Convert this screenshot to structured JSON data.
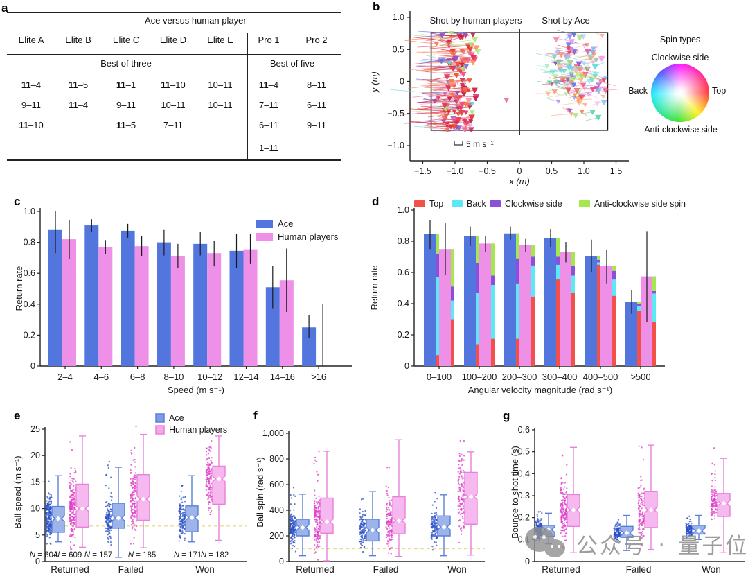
{
  "panels": {
    "a": {
      "letter": "a",
      "title": "Ace versus human player",
      "columns": [
        "Elite A",
        "Elite B",
        "Elite C",
        "Elite D",
        "Elite E",
        "Pro 1",
        "Pro 2"
      ],
      "group_headers": [
        {
          "text": "Best of three",
          "cols": [
            0,
            4
          ]
        },
        {
          "text": "Best of five",
          "cols": [
            5,
            6
          ]
        }
      ],
      "rows": [
        [
          {
            "s": "11–4",
            "w": true
          },
          {
            "s": "11–5",
            "w": true
          },
          {
            "s": "11–1",
            "w": true
          },
          {
            "s": "11–10",
            "w": true
          },
          {
            "s": "10–11",
            "w": false
          },
          {
            "s": "11–4",
            "w": true
          },
          {
            "s": "8–11",
            "w": false
          }
        ],
        [
          {
            "s": "9–11",
            "w": false
          },
          {
            "s": "11–4",
            "w": true
          },
          {
            "s": "9–11",
            "w": false
          },
          {
            "s": "10–11",
            "w": false
          },
          {
            "s": "10–11",
            "w": false
          },
          {
            "s": "7–11",
            "w": false
          },
          {
            "s": "6–11",
            "w": false
          }
        ],
        [
          {
            "s": "11–10",
            "w": true
          },
          {
            "s": "",
            "w": false
          },
          {
            "s": "11–5",
            "w": true
          },
          {
            "s": "7–11",
            "w": false
          },
          {
            "s": "",
            "w": false
          },
          {
            "s": "6–11",
            "w": false
          },
          {
            "s": "9–11",
            "w": false
          }
        ],
        [
          {
            "s": "",
            "w": false
          },
          {
            "s": "",
            "w": false
          },
          {
            "s": "",
            "w": false
          },
          {
            "s": "",
            "w": false
          },
          {
            "s": "",
            "w": false
          },
          {
            "s": "1–11",
            "w": false
          },
          {
            "s": "",
            "w": false
          }
        ]
      ]
    },
    "b": {
      "letter": "b"
    },
    "c": {
      "letter": "c"
    },
    "d": {
      "letter": "d"
    },
    "e": {
      "letter": "e"
    },
    "f": {
      "letter": "f"
    },
    "g": {
      "letter": "g"
    }
  },
  "colors": {
    "ace_blue": "#5276dd",
    "human_pink": "#ee8fe8",
    "box_ace_fill": "#9db4ea",
    "box_ace_stroke": "#5b7fd9",
    "box_human_fill": "#f5b8ef",
    "box_human_stroke": "#e981da",
    "jitter_ace": "#2a50c8",
    "jitter_human": "#e03cc8",
    "spin_top": "#f25048",
    "spin_back": "#5ce8f5",
    "spin_cw": "#8a50dc",
    "spin_acw": "#a4e74e",
    "refline": "#e6dd8f",
    "err": "#1a1a1a"
  },
  "chart_data": [
    {
      "id": "b",
      "type": "scatter",
      "title_left": "Shot by human players",
      "title_right": "Shot by Ace",
      "xlabel": "x (m)",
      "ylabel": "y (m)",
      "xlim": [
        -1.5,
        1.5
      ],
      "ylim": [
        -1.0,
        1.0
      ],
      "xticks": [
        {
          "l": "−1.5",
          "v": -1.5
        },
        {
          "l": "−1.0",
          "v": -1.0
        },
        {
          "l": "−0.5",
          "v": -0.5
        },
        {
          "l": "0",
          "v": 0
        },
        {
          "l": "0.5",
          "v": 0.5
        },
        {
          "l": "1.0",
          "v": 1.0
        },
        {
          "l": "1.5",
          "v": 1.5
        }
      ],
      "yticks": [
        {
          "l": "1.0",
          "v": 1.0
        },
        {
          "l": "0.5",
          "v": 0.5
        },
        {
          "l": "0",
          "v": 0
        },
        {
          "l": "−0.5",
          "v": -0.5
        },
        {
          "l": "−1.0",
          "v": -1.0
        }
      ],
      "table_rect": {
        "x": [
          -1.37,
          1.37
        ],
        "y": [
          -0.76,
          0.76
        ]
      },
      "scale_label": "5 m s⁻¹",
      "wheel": {
        "title": "Spin types",
        "top": "Clockwise side",
        "left": "Back",
        "right": "Top",
        "bottom": "Anti-clockwise side"
      },
      "clusters": [
        {
          "name": "human-shots",
          "n": 150,
          "x": [
            -1.33,
            -0.58
          ],
          "y": [
            -0.77,
            0.76
          ],
          "tail": "long-left",
          "palette": [
            "#e0302f",
            "#e8403d",
            "#f05545",
            "#d92638",
            "#f26a4a",
            "#ff7847",
            "#e8356e",
            "#f2497f",
            "#d4265e",
            "#ff8a5e",
            "#f06a9a",
            "#c22047",
            "#ef4444",
            "#e95c2e",
            "#8a4fd8",
            "#6fd8e0",
            "#a8e87a",
            "#f2a4c4",
            "#5f72e8"
          ]
        },
        {
          "name": "ace-shots",
          "n": 140,
          "x": [
            0.36,
            1.35
          ],
          "y": [
            -0.66,
            0.73
          ],
          "tail": "short",
          "palette": [
            "#ef4d6e",
            "#f2689a",
            "#e84545",
            "#ff8a5c",
            "#f2a05a",
            "#ee8fe8",
            "#d455c8",
            "#8a4fd8",
            "#6a74e8",
            "#7fb4f0",
            "#63dbe0",
            "#66d9a8",
            "#9fe566",
            "#c8e87a",
            "#f2b4d4",
            "#ffb08a",
            "#e84587",
            "#74e0cf"
          ]
        }
      ],
      "strays": [
        {
          "x": -0.2,
          "y": -0.29,
          "color": "#f06a9a"
        }
      ]
    },
    {
      "id": "c",
      "type": "bar",
      "ylabel": "Return rate",
      "xlabel": "Speed (m s⁻¹)",
      "ylim": [
        0,
        1.0
      ],
      "yticks": [
        {
          "l": "0",
          "v": 0
        },
        {
          "l": "0.2",
          "v": 0.2
        },
        {
          "l": "0.4",
          "v": 0.4
        },
        {
          "l": "0.6",
          "v": 0.6
        },
        {
          "l": "0.8",
          "v": 0.8
        },
        {
          "l": "1.0",
          "v": 1.0
        }
      ],
      "categories": [
        "2–4",
        "4–6",
        "6–8",
        "8–10",
        "10–12",
        "12–14",
        "14–16",
        ">16"
      ],
      "series": [
        {
          "name": "Ace",
          "values": [
            0.88,
            0.91,
            0.875,
            0.8,
            0.79,
            0.745,
            0.51,
            0.25
          ],
          "err": [
            [
              0.73,
              1.0
            ],
            [
              0.87,
              0.95
            ],
            [
              0.83,
              0.92
            ],
            [
              0.715,
              0.88
            ],
            [
              0.715,
              0.87
            ],
            [
              0.635,
              0.855
            ],
            [
              0.37,
              0.65
            ],
            [
              0.18,
              0.33
            ]
          ]
        },
        {
          "name": "Human players",
          "values": [
            0.82,
            0.77,
            0.775,
            0.71,
            0.73,
            0.755,
            0.555,
            0
          ],
          "err": [
            [
              0.69,
              0.945
            ],
            [
              0.725,
              0.815
            ],
            [
              0.71,
              0.84
            ],
            [
              0.635,
              0.79
            ],
            [
              0.645,
              0.81
            ],
            [
              0.66,
              0.855
            ],
            [
              0.35,
              0.76
            ],
            [
              0.0,
              0.4
            ]
          ]
        }
      ]
    },
    {
      "id": "d",
      "type": "bar-stacked-overlay",
      "ylabel": "Return rate",
      "xlabel": "Angular velocity magnitude (rad s⁻¹)",
      "ylim": [
        0,
        1.0
      ],
      "yticks": [
        {
          "l": "0",
          "v": 0
        },
        {
          "l": "0.2",
          "v": 0.2
        },
        {
          "l": "0.4",
          "v": 0.4
        },
        {
          "l": "0.6",
          "v": 0.6
        },
        {
          "l": "0.8",
          "v": 0.8
        },
        {
          "l": "1.0",
          "v": 1.0
        }
      ],
      "categories": [
        "0–100",
        "100–200",
        "200–300",
        "300–400",
        "400–500",
        ">500"
      ],
      "legend": [
        "Top",
        "Back",
        "Clockwise side",
        "Anti-clockwise side spin"
      ],
      "series": [
        {
          "name": "Ace",
          "values": [
            0.845,
            0.835,
            0.85,
            0.82,
            0.705,
            0.41
          ],
          "err": [
            [
              0.75,
              0.935
            ],
            [
              0.77,
              0.895
            ],
            [
              0.81,
              0.895
            ],
            [
              0.76,
              0.88
            ],
            [
              0.6,
              0.81
            ],
            [
              0.335,
              0.485
            ]
          ]
        },
        {
          "name": "Human players",
          "values": [
            0.75,
            0.785,
            0.775,
            0.73,
            0.64,
            0.575
          ],
          "err": [
            [
              0.585,
              0.915
            ],
            [
              0.73,
              0.835
            ],
            [
              0.73,
              0.815
            ],
            [
              0.665,
              0.795
            ],
            [
              0.53,
              0.745
            ],
            [
              0.28,
              0.865
            ]
          ]
        }
      ],
      "stacks": {
        "ace": [
          [
            0.07,
            0.57,
            0.72
          ],
          [
            0.14,
            0.47,
            0.66
          ],
          [
            0.175,
            0.53,
            0.69
          ],
          [
            0.555,
            0.65,
            0.7
          ],
          [
            0.65,
            0.665,
            0.68
          ],
          [
            0.355,
            0.385,
            0.4
          ]
        ],
        "human": [
          [
            0.3,
            0.42,
            0.51
          ],
          [
            0.175,
            0.52,
            0.58
          ],
          [
            0.445,
            0.645,
            0.7
          ],
          [
            0.47,
            0.58,
            0.645
          ],
          [
            0.45,
            0.555,
            0.61
          ],
          [
            0.28,
            0.465,
            0.48
          ]
        ]
      }
    },
    {
      "id": "e",
      "type": "box",
      "ylabel": "Ball speed (m s⁻¹)",
      "ylim": [
        0,
        25
      ],
      "refline": 6.7,
      "yticks": [
        {
          "l": "0",
          "v": 0
        },
        {
          "l": "5",
          "v": 5
        },
        {
          "l": "10",
          "v": 10
        },
        {
          "l": "15",
          "v": 15
        },
        {
          "l": "20",
          "v": 20
        },
        {
          "l": "25",
          "v": 25
        }
      ],
      "categories": [
        "Returned",
        "Failed",
        "Won"
      ],
      "legend": [
        "Ace",
        "Human players"
      ],
      "n_labels": [
        "N = 604",
        "N = 609",
        "N = 157",
        "N = 185",
        "N = 171",
        "N = 182"
      ],
      "series": [
        {
          "name": "Ace",
          "jitter_n": [
            200,
            130,
            120
          ],
          "boxes": [
            [
              3.7,
              5.5,
              8.1,
              10.4,
              16.2
            ],
            [
              0.8,
              6.3,
              8.2,
              11.0,
              17.8
            ],
            [
              3.7,
              5.6,
              8.3,
              10.5,
              16.2
            ]
          ]
        },
        {
          "name": "Human players",
          "jitter_n": [
            200,
            140,
            130
          ],
          "boxes": [
            [
              2.7,
              6.5,
              10.0,
              14.6,
              23.7
            ],
            [
              2.6,
              7.8,
              11.8,
              16.4,
              24.0
            ],
            [
              4.0,
              10.8,
              15.6,
              18.0,
              23.7
            ]
          ]
        }
      ]
    },
    {
      "id": "f",
      "type": "box",
      "ylabel": "Ball spin (rad s⁻¹)",
      "ylim": [
        0,
        1000
      ],
      "refline": 100,
      "yticks": [
        {
          "l": "0",
          "v": 0
        },
        {
          "l": "200",
          "v": 200
        },
        {
          "l": "400",
          "v": 400
        },
        {
          "l": "600",
          "v": 600
        },
        {
          "l": "800",
          "v": 800
        },
        {
          "l": "1,000",
          "v": 1000
        }
      ],
      "categories": [
        "Returned",
        "Failed",
        "Won"
      ],
      "series": [
        {
          "name": "Ace",
          "jitter_n": [
            160,
            110,
            100
          ],
          "boxes": [
            [
              45,
              200,
              265,
              330,
              525
            ],
            [
              45,
              160,
              245,
              330,
              545
            ],
            [
              45,
              200,
              270,
              355,
              520
            ]
          ]
        },
        {
          "name": "Human players",
          "jitter_n": [
            160,
            120,
            110
          ],
          "boxes": [
            [
              5,
              220,
              310,
              495,
              860
            ],
            [
              40,
              215,
              320,
              505,
              950
            ],
            [
              50,
              290,
              505,
              695,
              855
            ]
          ]
        }
      ]
    },
    {
      "id": "g",
      "type": "box",
      "ylabel": "Bounce to shot time (s)",
      "ylim": [
        0,
        0.6
      ],
      "yticks": [
        {
          "l": "0",
          "v": 0
        },
        {
          "l": "0.1",
          "v": 0.1
        },
        {
          "l": "0.2",
          "v": 0.2
        },
        {
          "l": "0.3",
          "v": 0.3
        },
        {
          "l": "0.4",
          "v": 0.4
        },
        {
          "l": "0.5",
          "v": 0.5
        },
        {
          "l": "0.6",
          "v": 0.6
        }
      ],
      "categories": [
        "Returned",
        "Failed",
        "Won"
      ],
      "series": [
        {
          "name": "Ace",
          "jitter_n": [
            160,
            110,
            100
          ],
          "boxes": [
            [
              0.08,
              0.115,
              0.145,
              0.165,
              0.22
            ],
            [
              0.05,
              0.11,
              0.13,
              0.16,
              0.21
            ],
            [
              0.1,
              0.125,
              0.14,
              0.165,
              0.21
            ]
          ]
        },
        {
          "name": "Human players",
          "jitter_n": [
            160,
            120,
            110
          ],
          "boxes": [
            [
              0.04,
              0.16,
              0.235,
              0.305,
              0.52
            ],
            [
              0.055,
              0.155,
              0.235,
              0.32,
              0.53
            ],
            [
              0.04,
              0.205,
              0.265,
              0.31,
              0.47
            ]
          ]
        }
      ]
    }
  ],
  "watermark": {
    "icon": "wechat-icon",
    "text1": "公众号",
    "dot": "·",
    "text2": "量子位"
  }
}
